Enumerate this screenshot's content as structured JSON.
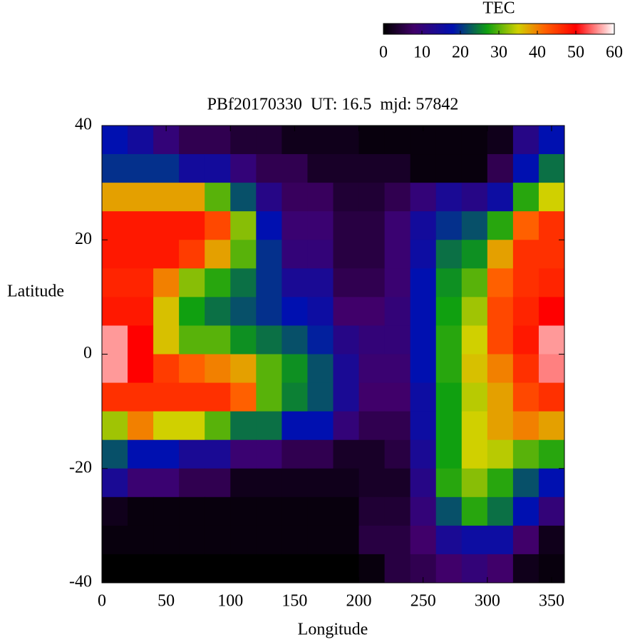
{
  "chart_data": {
    "type": "heatmap",
    "title": "PBf20170330  UT: 16.5  mjd: 57842",
    "x_label": "Longitude",
    "y_label": "Latitude",
    "colorbar_label": "TEC",
    "x": [
      0,
      20,
      40,
      60,
      80,
      100,
      120,
      140,
      160,
      180,
      200,
      220,
      240,
      260,
      280,
      300,
      320,
      340,
      360
    ],
    "y": [
      40,
      35,
      30,
      25,
      20,
      15,
      10,
      5,
      0,
      -5,
      -10,
      -15,
      -20,
      -25,
      -30,
      -35,
      -40
    ],
    "z": [
      [
        18,
        15,
        10,
        6,
        6,
        4,
        4,
        2,
        2,
        2,
        1,
        1,
        1,
        1,
        1,
        2,
        12,
        18
      ],
      [
        20,
        20,
        20,
        15,
        15,
        10,
        6,
        6,
        3,
        3,
        3,
        3,
        1,
        1,
        1,
        6,
        18,
        24
      ],
      [
        38,
        38,
        38,
        38,
        30,
        22,
        12,
        7,
        7,
        4,
        4,
        6,
        10,
        14,
        12,
        16,
        28,
        35
      ],
      [
        48,
        48,
        48,
        48,
        44,
        32,
        18,
        9,
        9,
        5,
        5,
        9,
        15,
        20,
        22,
        28,
        42,
        46
      ],
      [
        48,
        48,
        48,
        45,
        38,
        30,
        20,
        10,
        10,
        5,
        5,
        9,
        16,
        24,
        26,
        38,
        46,
        46
      ],
      [
        47,
        47,
        40,
        32,
        28,
        24,
        20,
        14,
        14,
        6,
        6,
        9,
        18,
        26,
        30,
        42,
        46,
        47
      ],
      [
        48,
        48,
        36,
        27,
        24,
        22,
        20,
        18,
        16,
        8,
        8,
        10,
        18,
        27,
        33,
        44,
        47,
        50
      ],
      [
        56,
        50,
        36,
        30,
        30,
        26,
        24,
        22,
        19,
        12,
        10,
        10,
        18,
        28,
        35,
        44,
        48,
        56
      ],
      [
        56,
        50,
        45,
        42,
        40,
        38,
        30,
        26,
        22,
        14,
        9,
        9,
        18,
        28,
        36,
        40,
        46,
        55
      ],
      [
        46,
        46,
        46,
        46,
        46,
        42,
        30,
        25,
        22,
        14,
        8,
        8,
        16,
        27,
        34,
        38,
        44,
        46
      ],
      [
        33,
        40,
        35,
        35,
        30,
        24,
        24,
        18,
        18,
        10,
        6,
        6,
        16,
        27,
        35,
        38,
        40,
        38
      ],
      [
        22,
        18,
        18,
        14,
        14,
        9,
        9,
        6,
        6,
        3,
        3,
        5,
        14,
        27,
        35,
        34,
        30,
        28
      ],
      [
        14,
        9,
        9,
        6,
        6,
        2,
        2,
        2,
        2,
        2,
        3,
        3,
        12,
        28,
        32,
        28,
        22,
        18
      ],
      [
        2,
        1,
        1,
        1,
        1,
        1,
        1,
        1,
        1,
        1,
        4,
        4,
        10,
        22,
        28,
        24,
        18,
        10
      ],
      [
        1,
        1,
        1,
        1,
        1,
        1,
        1,
        1,
        1,
        1,
        5,
        5,
        8,
        14,
        16,
        16,
        8,
        2
      ],
      [
        0,
        0,
        0,
        0,
        0,
        0,
        0,
        0,
        0,
        0,
        1,
        5,
        6,
        8,
        10,
        8,
        2,
        1
      ]
    ],
    "xlim": [
      0,
      360
    ],
    "xticks": [
      0,
      50,
      100,
      150,
      200,
      250,
      300,
      350
    ],
    "ylim": [
      -40,
      40
    ],
    "yticks": [
      -40,
      -20,
      0,
      20,
      40
    ],
    "zlim": [
      0,
      60
    ],
    "zticks": [
      0,
      10,
      20,
      30,
      40,
      50,
      60
    ],
    "colorscale": [
      [
        0,
        "#000000"
      ],
      [
        8,
        "#40006a"
      ],
      [
        18,
        "#0010b0"
      ],
      [
        27,
        "#10a010"
      ],
      [
        35,
        "#d0d000"
      ],
      [
        42,
        "#ff6000"
      ],
      [
        50,
        "#ff0000"
      ],
      [
        60,
        "#ffffff"
      ]
    ]
  }
}
